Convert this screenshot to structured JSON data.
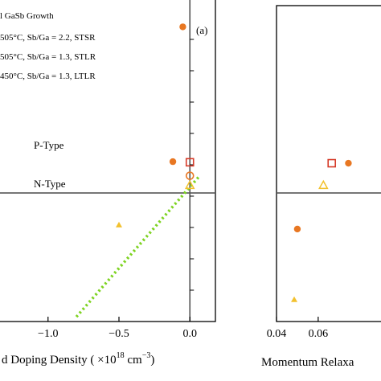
{
  "chart_data": [
    {
      "type": "scatter",
      "panel_label": "(a)",
      "xlabel": "d Doping Density ( ×10",
      "xlabel_exp": "18",
      "xlabel_unit": " cm",
      "xlabel_unit_exp": "−3",
      "xlabel_close": ")",
      "xlim": [
        -1.35,
        0.18
      ],
      "ylim": [
        0,
        10
      ],
      "xticks": [
        -1.0,
        -0.5,
        0.0
      ],
      "xtick_labels": [
        "−1.0",
        "−0.5",
        "0.0"
      ],
      "region_labels": {
        "upper": "P-Type",
        "lower": "N-Type"
      },
      "legend": {
        "title": "l GaSb Growth",
        "entries": [
          "505°C, Sb/Ga = 2.2, STSR",
          "505°C, Sb/Ga = 1.3, STLR",
          "450°C, Sb/Ga = 1.3, LTLR"
        ]
      },
      "series": [
        {
          "marker": "filled-circle",
          "color": "#E87722",
          "points": [
            [
              -0.05,
              9.4
            ],
            [
              -0.12,
              5.1
            ]
          ]
        },
        {
          "marker": "open-square",
          "color": "#D63C2A",
          "points": [
            [
              0.0,
              5.08
            ]
          ]
        },
        {
          "marker": "open-circle",
          "color": "#E87722",
          "points": [
            [
              0.0,
              4.65
            ]
          ]
        },
        {
          "marker": "open-triangle",
          "color": "#F2C12E",
          "points": [
            [
              0.0,
              4.35
            ]
          ]
        },
        {
          "marker": "filled-triangle",
          "color": "#F2C12E",
          "points": [
            [
              -0.5,
              3.08
            ]
          ]
        }
      ],
      "fit_line": {
        "color": "#7ED321",
        "points": [
          [
            -0.8,
            0.15
          ],
          [
            0.06,
            4.6
          ]
        ]
      },
      "hline_y": 4.1,
      "vline_x": 0.0
    },
    {
      "type": "scatter",
      "xlabel": "Momentum Relaxa",
      "xlim": [
        0.04,
        0.094
      ],
      "ylim": [
        0,
        10
      ],
      "xticks": [
        0.04,
        0.06
      ],
      "xtick_labels": [
        "0.04",
        "0.06"
      ],
      "series": [
        {
          "marker": "open-square",
          "color": "#D63C2A",
          "points": [
            [
              0.0665,
              5.05
            ]
          ]
        },
        {
          "marker": "filled-circle",
          "color": "#E87722",
          "points": [
            [
              0.0745,
              5.05
            ],
            [
              0.05,
              2.95
            ]
          ]
        },
        {
          "marker": "open-triangle",
          "color": "#F2C12E",
          "points": [
            [
              0.0625,
              4.35
            ]
          ]
        },
        {
          "marker": "filled-triangle",
          "color": "#F2C12E",
          "points": [
            [
              0.0485,
              0.7
            ]
          ]
        }
      ],
      "hline_y": 4.1
    }
  ]
}
